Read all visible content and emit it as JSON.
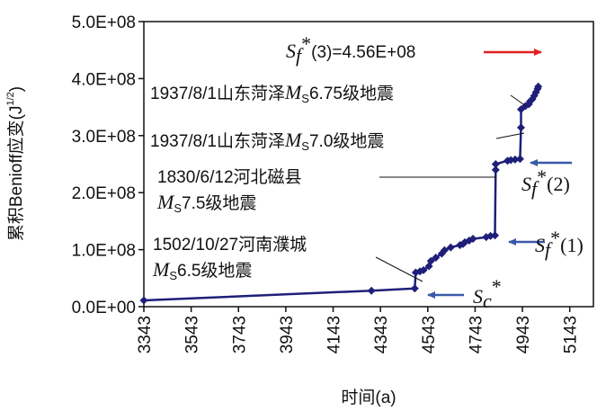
{
  "chart_data": {
    "type": "line",
    "xlabel": "时间(a)",
    "ylabel": "累积Benioff应变(J",
    "ylabel_superscript": "1/2",
    "ylabel_close": ")",
    "xlim": [
      3343,
      5243
    ],
    "ylim": [
      0,
      500000000
    ],
    "x_tick_labels": [
      "3343",
      "3543",
      "3743",
      "3943",
      "4143",
      "4343",
      "4543",
      "4743",
      "4943",
      "5143"
    ],
    "y_tick_labels": [
      "0.0E+00",
      "1.0E+08",
      "2.0E+08",
      "3.0E+08",
      "4.0E+08",
      "5.0E+08"
    ],
    "series": [
      {
        "color": "#1f1f7a",
        "x": [
          3343,
          4305,
          4488,
          4492,
          4510,
          4525,
          4548,
          4556,
          4577,
          4602,
          4614,
          4640,
          4679,
          4692,
          4700,
          4718,
          4734,
          4790,
          4808,
          4827,
          4830,
          4830,
          4880,
          4894,
          4912,
          4933,
          4937,
          4937,
          4956,
          4970,
          4975,
          4985,
          4993,
          5000,
          5007,
          5010
        ],
        "y": [
          11000000,
          28000000,
          32000000,
          60000000,
          62000000,
          64000000,
          71000000,
          80000000,
          86000000,
          93000000,
          99000000,
          104000000,
          108000000,
          110000000,
          113000000,
          116000000,
          119000000,
          122000000,
          124000000,
          125000000,
          240000000,
          250000000,
          256000000,
          257000000,
          258000000,
          259000000,
          314000000,
          346000000,
          352000000,
          355000000,
          360000000,
          364000000,
          370000000,
          376000000,
          382000000,
          386000000
        ]
      }
    ],
    "annotations": [
      {
        "pre": "1937/8/1山东菏泽",
        "mag": "M",
        "sub": "S",
        "post": "6.75级地震"
      },
      {
        "pre": "1937/8/1山东菏泽",
        "mag": "M",
        "sub": "S",
        "post": "7.0级地震"
      },
      {
        "line1": "1830/6/12河北磁县",
        "mag": "M",
        "sub": "S",
        "post": "7.5级地震"
      },
      {
        "line1": "1502/10/27河南濮城",
        "mag": "M",
        "sub": "S",
        "post": "6.5级地震"
      }
    ],
    "thresholds": [
      {
        "label_s": "S",
        "label_sub": "f",
        "label_star": "*",
        "label_rest": "(3)=4.56E+08",
        "color": "#e02020"
      },
      {
        "label_s": "S",
        "label_sub": "f",
        "label_star": "*",
        "label_rest": "(2)",
        "color": "#3a5aa8"
      },
      {
        "label_s": "S",
        "label_sub": "f",
        "label_star": "*",
        "label_rest": "(1)",
        "color": "#3a5aa8"
      },
      {
        "label_s": "S",
        "label_sub": "c",
        "label_star": "*",
        "label_rest": "",
        "color": "#3a5aa8"
      }
    ]
  }
}
